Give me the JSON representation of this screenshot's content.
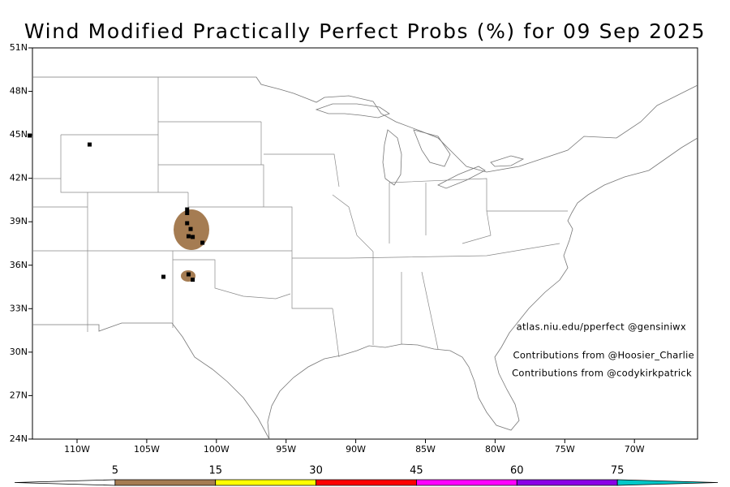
{
  "title": "Wind Modified Practically Perfect Probs (%) for 09 Sep 2025",
  "lat_ticks": [
    {
      "value": 51,
      "label": "51N"
    },
    {
      "value": 48,
      "label": "48N"
    },
    {
      "value": 45,
      "label": "45N"
    },
    {
      "value": 42,
      "label": "42N"
    },
    {
      "value": 39,
      "label": "39N"
    },
    {
      "value": 36,
      "label": "36N"
    },
    {
      "value": 33,
      "label": "33N"
    },
    {
      "value": 30,
      "label": "30N"
    },
    {
      "value": 27,
      "label": "27N"
    },
    {
      "value": 24,
      "label": "24N"
    }
  ],
  "lon_ticks": [
    {
      "value": -110,
      "label": "110W"
    },
    {
      "value": -105,
      "label": "105W"
    },
    {
      "value": -100,
      "label": "100W"
    },
    {
      "value": -95,
      "label": "95W"
    },
    {
      "value": -90,
      "label": "90W"
    },
    {
      "value": -85,
      "label": "85W"
    },
    {
      "value": -80,
      "label": "80W"
    },
    {
      "value": -75,
      "label": "75W"
    },
    {
      "value": -70,
      "label": "70W"
    }
  ],
  "reports": {
    "lon": [
      -113.4,
      -109.1,
      -102.1,
      -102.1,
      -102.1,
      -101.85,
      -102.0,
      -101.7,
      -101.0,
      -103.8,
      -102.0,
      -101.7
    ],
    "lat": [
      44.95,
      44.33,
      39.85,
      39.6,
      38.9,
      38.5,
      38.0,
      37.95,
      37.55,
      35.2,
      35.37,
      35.0
    ]
  },
  "credits": [
    "atlas.niu.edu/pperfect @gensiniwx",
    "Contributions from @Hoosier_Charlie",
    "Contributions from @codykirkpatrick"
  ],
  "colorbar": {
    "levels": [
      5,
      15,
      30,
      45,
      60,
      75
    ],
    "colors": [
      "#ffffff",
      "#a57c52",
      "#ffff00",
      "#ff0000",
      "#ff00ff",
      "#8a00e6",
      "#00c8c8"
    ]
  }
}
